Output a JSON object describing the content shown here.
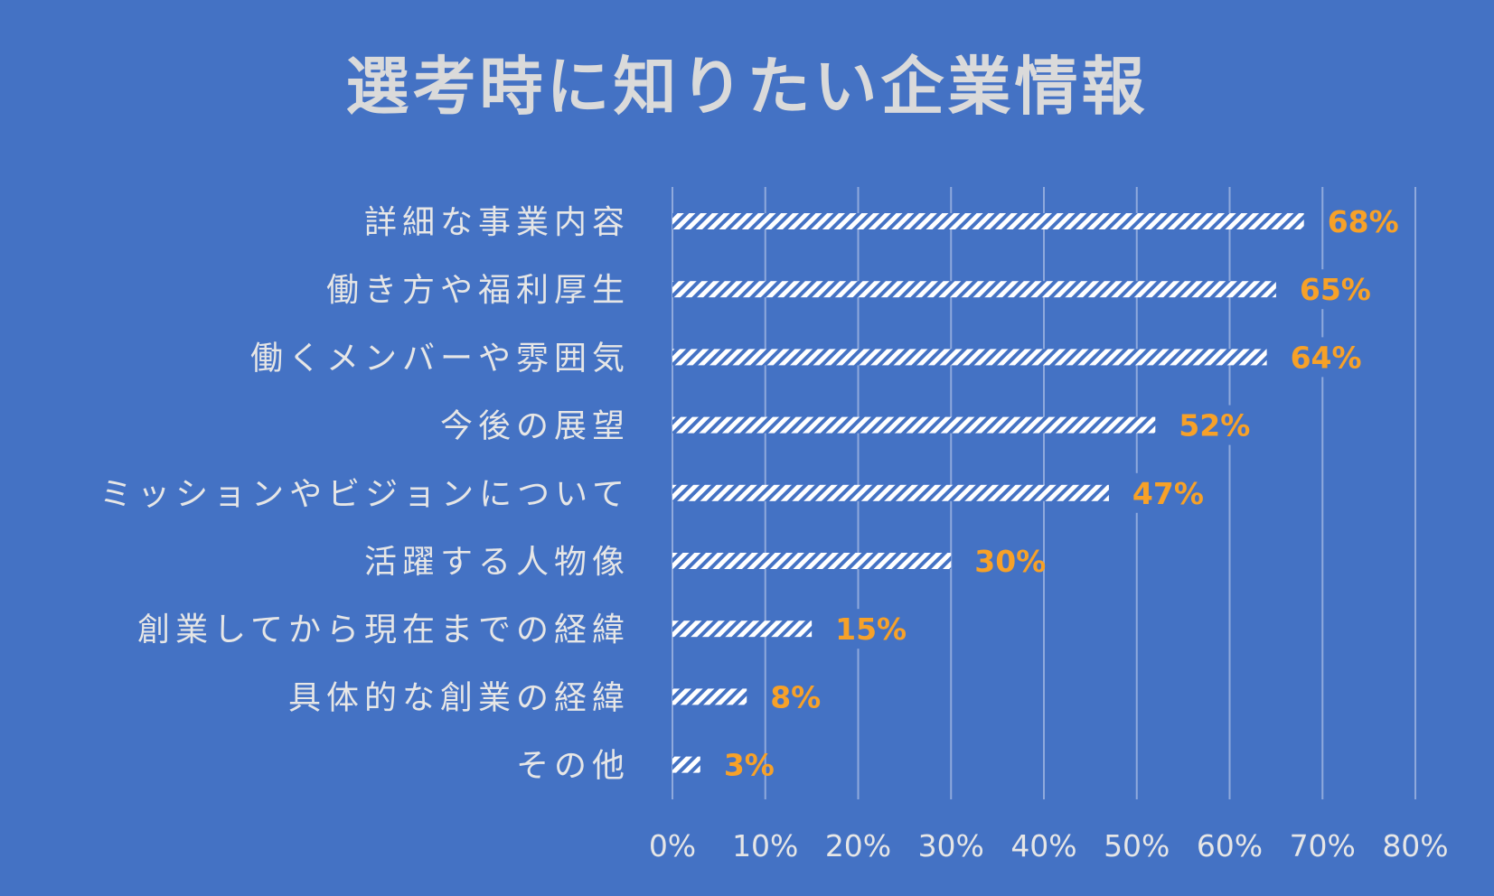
{
  "chart_data": {
    "type": "bar",
    "orientation": "horizontal",
    "title": "選考時に知りたい企業情報",
    "categories": [
      "詳細な事業内容",
      "働き方や福利厚生",
      "働くメンバーや雰囲気",
      "今後の展望",
      "ミッションやビジョンについて",
      "活躍する人物像",
      "創業してから現在までの経緯",
      "具体的な創業の経緯",
      "その他"
    ],
    "values": [
      68,
      65,
      64,
      52,
      47,
      30,
      15,
      8,
      3
    ],
    "value_labels": [
      "68%",
      "65%",
      "64%",
      "52%",
      "47%",
      "30%",
      "15%",
      "8%",
      "3%"
    ],
    "xlim": [
      0,
      80
    ],
    "xticks": [
      "0%",
      "10%",
      "20%",
      "30%",
      "40%",
      "50%",
      "60%",
      "70%",
      "80%"
    ],
    "grid": "vertical",
    "bar_pattern": "diagonal-hatch",
    "colors": {
      "background": "#4472C4",
      "bar_fill": "#FFFFFF",
      "bar_hatch": "#4472C4",
      "text": "#E6E6E6",
      "data_label": "#F7A128",
      "gridline": "#8FA9DC"
    }
  }
}
